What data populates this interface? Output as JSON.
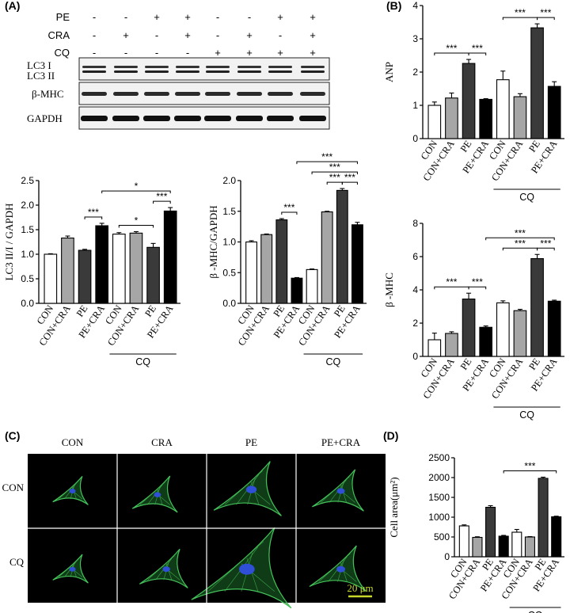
{
  "panels": {
    "A": "(A)",
    "B": "(B)",
    "C": "(C)",
    "D": "(D)"
  },
  "treatment_table": {
    "rows": [
      {
        "label": "PE",
        "signs": [
          "-",
          "-",
          "+",
          "+",
          "-",
          "-",
          "+",
          "+"
        ]
      },
      {
        "label": "CRA",
        "signs": [
          "-",
          "+",
          "-",
          "+",
          "-",
          "+",
          "-",
          "+"
        ]
      },
      {
        "label": "CQ",
        "signs": [
          "-",
          "-",
          "-",
          "-",
          "+",
          "+",
          "+",
          "+"
        ]
      }
    ]
  },
  "blot": {
    "lc3_label_1": "LC3 I",
    "lc3_label_2": "LC3 II",
    "mhc_label": "β-MHC",
    "gapdh_label": "GAPDH"
  },
  "common": {
    "categories": [
      "CON",
      "CON+CRA",
      "PE",
      "PE+CRA",
      "CON",
      "CON+CRA",
      "PE",
      "PE+CRA"
    ],
    "cq_label": "CQ",
    "bar_colors": [
      "#ffffff",
      "#a6a6a6",
      "#3a3a3a",
      "#000000",
      "#ffffff",
      "#a6a6a6",
      "#3a3a3a",
      "#000000"
    ]
  },
  "chart_data": [
    {
      "id": "lc3",
      "type": "bar",
      "categories": [
        "CON",
        "CON+CRA",
        "PE",
        "PE+CRA",
        "CON",
        "CON+CRA",
        "PE",
        "PE+CRA"
      ],
      "values": [
        1.0,
        1.33,
        1.08,
        1.58,
        1.41,
        1.43,
        1.14,
        1.88
      ],
      "errors": [
        0.01,
        0.04,
        0.02,
        0.05,
        0.03,
        0.03,
        0.08,
        0.07
      ],
      "ylabel": "LC3 II/I / GAPDH",
      "ylim": [
        0,
        2.5
      ],
      "yticks": [
        "0.0",
        "0.5",
        "1.0",
        "1.5",
        "2.0",
        "2.5"
      ],
      "significance": [
        {
          "from": 2,
          "to": 3,
          "label": "***",
          "level": 0
        },
        {
          "from": 4,
          "to": 6,
          "label": "*",
          "level": 0
        },
        {
          "from": 6,
          "to": 7,
          "label": "***",
          "level": 0
        },
        {
          "from": 3,
          "to": 7,
          "label": "*",
          "level": 1
        }
      ]
    },
    {
      "id": "mhc-a",
      "type": "bar",
      "categories": [
        "CON",
        "CON+CRA",
        "PE",
        "PE+CRA",
        "CON",
        "CON+CRA",
        "PE",
        "PE+CRA"
      ],
      "values": [
        1.0,
        1.12,
        1.36,
        0.41,
        0.55,
        1.49,
        1.84,
        1.28
      ],
      "errors": [
        0.02,
        0.01,
        0.02,
        0.01,
        0.01,
        0.01,
        0.03,
        0.04
      ],
      "ylabel": "β -MHC/GAPDH",
      "ylim": [
        0,
        2.0
      ],
      "yticks": [
        "0.0",
        "0.5",
        "1.0",
        "1.5",
        "2.0"
      ],
      "significance": [
        {
          "from": 2,
          "to": 3,
          "label": "***",
          "level": 0
        },
        {
          "from": 5,
          "to": 6,
          "label": "***",
          "level": 0
        },
        {
          "from": 6,
          "to": 7,
          "label": "***",
          "level": 0
        },
        {
          "from": 4,
          "to": 7,
          "label": "***",
          "level": 1
        },
        {
          "from": 3,
          "to": 7,
          "label": "***",
          "level": 2
        }
      ]
    },
    {
      "id": "anp",
      "type": "bar",
      "categories": [
        "CON",
        "CON+CRA",
        "PE",
        "PE+CRA",
        "CON",
        "CON+CRA",
        "PE",
        "PE+CRA"
      ],
      "values": [
        1.0,
        1.22,
        2.26,
        1.18,
        1.77,
        1.26,
        3.33,
        1.57
      ],
      "errors": [
        0.1,
        0.15,
        0.12,
        0.02,
        0.26,
        0.09,
        0.12,
        0.14
      ],
      "ylabel": "ANP",
      "ylim": [
        0,
        4
      ],
      "yticks": [
        "0",
        "1",
        "2",
        "3",
        "4"
      ],
      "significance": [
        {
          "from": 0,
          "to": 2,
          "label": "***",
          "level": 0
        },
        {
          "from": 2,
          "to": 3,
          "label": "***",
          "level": 0
        },
        {
          "from": 4,
          "to": 6,
          "label": "***",
          "level": 0
        },
        {
          "from": 6,
          "to": 7,
          "label": "***",
          "level": 0
        }
      ]
    },
    {
      "id": "mhc-b",
      "type": "bar",
      "categories": [
        "CON",
        "CON+CRA",
        "PE",
        "PE+CRA",
        "CON",
        "CON+CRA",
        "PE",
        "PE+CRA"
      ],
      "values": [
        1.0,
        1.38,
        3.45,
        1.75,
        3.22,
        2.75,
        5.88,
        3.32
      ],
      "errors": [
        0.4,
        0.1,
        0.35,
        0.08,
        0.12,
        0.08,
        0.25,
        0.06
      ],
      "ylabel": "β -MHC",
      "ylim": [
        0,
        8
      ],
      "yticks": [
        "0",
        "2",
        "4",
        "6",
        "8"
      ],
      "significance": [
        {
          "from": 0,
          "to": 2,
          "label": "***",
          "level": 0
        },
        {
          "from": 2,
          "to": 3,
          "label": "***",
          "level": 0
        },
        {
          "from": 4,
          "to": 6,
          "label": "***",
          "level": 0
        },
        {
          "from": 6,
          "to": 7,
          "label": "***",
          "level": 0
        },
        {
          "from": 3,
          "to": 7,
          "label": "***",
          "level": 1
        }
      ]
    },
    {
      "id": "cellarea",
      "type": "bar",
      "categories": [
        "CON",
        "CON+CRA",
        "PE",
        "PE+CRA",
        "CON",
        "CON+CRA",
        "PE",
        "PE+CRA"
      ],
      "values": [
        780,
        490,
        1250,
        520,
        620,
        500,
        1980,
        1010
      ],
      "errors": [
        25,
        15,
        40,
        20,
        70,
        10,
        30,
        15
      ],
      "ylabel": "Cell area(μm²)",
      "ylim": [
        0,
        2500
      ],
      "yticks": [
        "0",
        "500",
        "1000",
        "1500",
        "2000",
        "2500"
      ],
      "significance": [
        {
          "from": 3,
          "to": 7,
          "label": "***",
          "level": 0
        }
      ]
    }
  ],
  "micrographs": {
    "columns": [
      "CON",
      "CRA",
      "PE",
      "PE+CRA"
    ],
    "rows": [
      "CON",
      "CQ"
    ],
    "scale_bar": "20 μm"
  }
}
